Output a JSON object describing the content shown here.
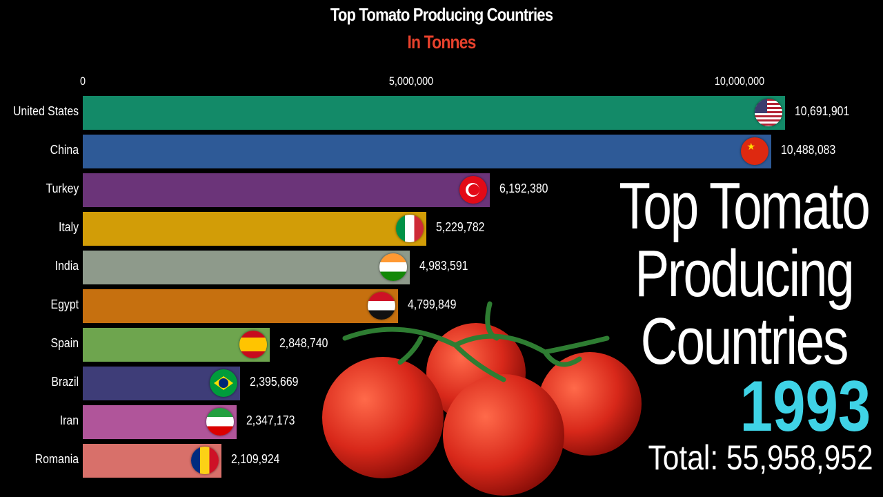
{
  "chart_data": {
    "type": "bar",
    "orientation": "horizontal",
    "title": "Top Tomato Producing Countries",
    "subtitle": "In Tonnes",
    "xlim": [
      0,
      10700000
    ],
    "x_ticks": [
      "0",
      "5,000,000",
      "10,000,000"
    ],
    "x_tick_values": [
      0,
      5000000,
      10000000
    ],
    "categories": [
      "United States",
      "China",
      "Turkey",
      "Italy",
      "India",
      "Egypt",
      "Spain",
      "Brazil",
      "Iran",
      "Romania"
    ],
    "values": [
      10691901,
      10488083,
      6192380,
      5229782,
      4983591,
      4799849,
      2848740,
      2395669,
      2347173,
      2109924
    ],
    "value_labels": [
      "10,691,901",
      "10,488,083",
      "6,192,380",
      "5,229,782",
      "4,983,591",
      "4,799,849",
      "2,848,740",
      "2,395,669",
      "2,347,173",
      "2,109,924"
    ],
    "colors": [
      "#138a68",
      "#2e5a97",
      "#6b3479",
      "#d29d07",
      "#8e9a8b",
      "#c6700f",
      "#6ea54e",
      "#3e3d78",
      "#b0559a",
      "#d8706a"
    ],
    "flags": [
      "us",
      "cn",
      "tr",
      "it",
      "in",
      "eg",
      "es",
      "br",
      "ir",
      "ro"
    ],
    "grid": false,
    "legend": "none"
  },
  "overlay": {
    "title_lines": [
      "Top Tomato",
      "Producing",
      "Countries"
    ],
    "year": "1993",
    "total": "Total: 55,958,952",
    "year_color": "#3fd3e6",
    "subtitle_color": "#e8412c"
  }
}
